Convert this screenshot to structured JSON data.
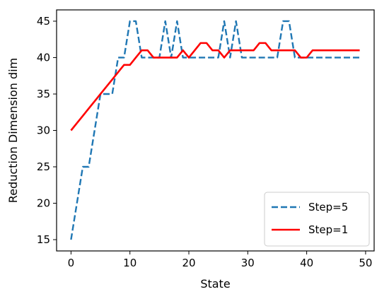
{
  "chart_data": {
    "type": "line",
    "title": "",
    "xlabel": "State",
    "ylabel": "Reduction Dimension dim",
    "xlim": [
      -2.45,
      51.45
    ],
    "ylim": [
      13.45,
      46.55
    ],
    "xticks": [
      0,
      10,
      20,
      30,
      40,
      50
    ],
    "yticks": [
      15,
      20,
      25,
      30,
      35,
      40,
      45
    ],
    "grid": false,
    "legend_position": "lower-right",
    "series": [
      {
        "name": "Step=5",
        "color": "#1f77b4",
        "linestyle": "dashed",
        "x": [
          0,
          1,
          2,
          3,
          4,
          5,
          6,
          7,
          8,
          9,
          10,
          11,
          12,
          13,
          14,
          15,
          16,
          17,
          18,
          19,
          20,
          21,
          22,
          23,
          24,
          25,
          26,
          27,
          28,
          29,
          30,
          31,
          32,
          33,
          34,
          35,
          36,
          37,
          38,
          39,
          40,
          41,
          42,
          43,
          44,
          45,
          46,
          47,
          48,
          49
        ],
        "y": [
          15,
          20,
          25,
          25,
          30,
          35,
          35,
          35,
          40,
          40,
          45,
          45,
          40,
          40,
          40,
          40,
          45,
          40,
          45,
          40,
          40,
          40,
          40,
          40,
          40,
          40,
          45,
          40,
          45,
          40,
          40,
          40,
          40,
          40,
          40,
          40,
          45,
          45,
          40,
          40,
          40,
          40,
          40,
          40,
          40,
          40,
          40,
          40,
          40,
          40
        ]
      },
      {
        "name": "Step=1",
        "color": "#ff0000",
        "linestyle": "solid",
        "x": [
          0,
          1,
          2,
          3,
          4,
          5,
          6,
          7,
          8,
          9,
          10,
          11,
          12,
          13,
          14,
          15,
          16,
          17,
          18,
          19,
          20,
          21,
          22,
          23,
          24,
          25,
          26,
          27,
          28,
          29,
          30,
          31,
          32,
          33,
          34,
          35,
          36,
          37,
          38,
          39,
          40,
          41,
          42,
          43,
          44,
          45,
          46,
          47,
          48,
          49
        ],
        "y": [
          30,
          31,
          32,
          33,
          34,
          35,
          36,
          37,
          38,
          39,
          39,
          40,
          41,
          41,
          40,
          40,
          40,
          40,
          40,
          41,
          40,
          41,
          42,
          42,
          41,
          41,
          40,
          41,
          41,
          41,
          41,
          41,
          42,
          42,
          41,
          41,
          41,
          41,
          41,
          40,
          40,
          41,
          41,
          41,
          41,
          41,
          41,
          41,
          41,
          41
        ]
      }
    ]
  }
}
